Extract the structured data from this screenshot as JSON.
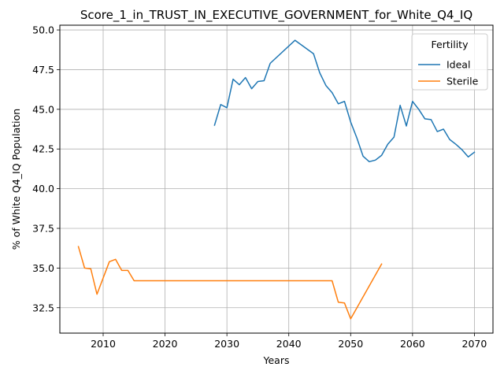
{
  "chart_data": {
    "type": "line",
    "title": "Score_1_in_TRUST_IN_EXECUTIVE_GOVERNMENT_for_White_Q4_IQ",
    "xlabel": "Years",
    "ylabel": "% of White Q4_IQ Population",
    "xlim": [
      2003,
      2073
    ],
    "ylim": [
      30.9,
      50.3
    ],
    "xticks": [
      2010,
      2020,
      2030,
      2040,
      2050,
      2060,
      2070
    ],
    "yticks": [
      32.5,
      35.0,
      37.5,
      40.0,
      42.5,
      45.0,
      47.5,
      50.0
    ],
    "xtick_labels": [
      "2010",
      "2020",
      "2030",
      "2040",
      "2050",
      "2060",
      "2070"
    ],
    "ytick_labels": [
      "32.5",
      "35.0",
      "37.5",
      "40.0",
      "42.5",
      "45.0",
      "47.5",
      "50.0"
    ],
    "grid": true,
    "legend": {
      "title": "Fertility",
      "position": "top-right"
    },
    "series": [
      {
        "name": "Ideal",
        "color": "#1f77b4",
        "x": [
          2028,
          2029,
          2030,
          2031,
          2032,
          2033,
          2034,
          2035,
          2036,
          2037,
          2041,
          2044,
          2045,
          2046,
          2047,
          2048,
          2049,
          2050,
          2051,
          2052,
          2053,
          2054,
          2055,
          2056,
          2057,
          2058,
          2059,
          2060,
          2061,
          2062,
          2063,
          2064,
          2065,
          2066,
          2067,
          2068,
          2069,
          2070
        ],
        "y": [
          44.0,
          45.3,
          45.1,
          46.9,
          46.55,
          47.0,
          46.3,
          46.75,
          46.8,
          47.9,
          49.35,
          48.5,
          47.3,
          46.5,
          46.05,
          45.35,
          45.5,
          44.2,
          43.2,
          42.05,
          41.7,
          41.8,
          42.1,
          42.8,
          43.25,
          45.25,
          43.95,
          45.5,
          45.0,
          44.4,
          44.35,
          43.6,
          43.75,
          43.1,
          42.8,
          42.45,
          42.0,
          42.3
        ]
      },
      {
        "name": "Sterile",
        "color": "#ff7f0e",
        "x": [
          2006,
          2007,
          2008,
          2009,
          2011,
          2012,
          2013,
          2014,
          2015,
          2047,
          2048,
          2049,
          2050,
          2055
        ],
        "y": [
          36.35,
          35.0,
          34.95,
          33.35,
          35.4,
          35.55,
          34.85,
          34.85,
          34.2,
          34.2,
          32.85,
          32.8,
          31.8,
          35.25
        ]
      }
    ]
  }
}
